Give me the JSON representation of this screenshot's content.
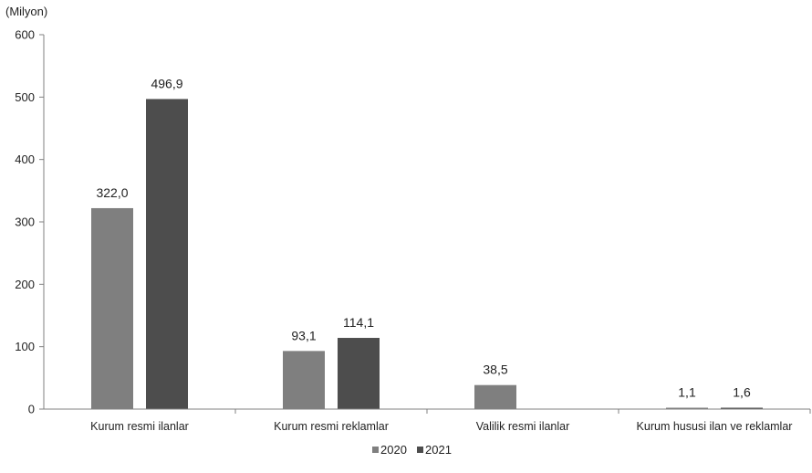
{
  "chart_data": {
    "type": "bar",
    "unit_label": "(Milyon)",
    "categories": [
      "Kurum resmi ilanlar",
      "Kurum resmi reklamlar",
      "Valilik resmi ilanlar",
      "Kurum hususi ilan ve reklamlar"
    ],
    "series": [
      {
        "name": "2020",
        "color": "#7f7f7f",
        "values": [
          322.0,
          93.1,
          38.5,
          1.1
        ],
        "labels": [
          "322,0",
          "93,1",
          "38,5",
          "1,1"
        ]
      },
      {
        "name": "2021",
        "color": "#4d4d4d",
        "values": [
          496.9,
          114.1,
          null,
          1.6
        ],
        "labels": [
          "496,9",
          "114,1",
          "",
          "1,6"
        ]
      }
    ],
    "ylim": [
      0,
      600
    ],
    "yticks": [
      0,
      100,
      200,
      300,
      400,
      500,
      600
    ],
    "legend_position": "bottom",
    "grid": false
  }
}
